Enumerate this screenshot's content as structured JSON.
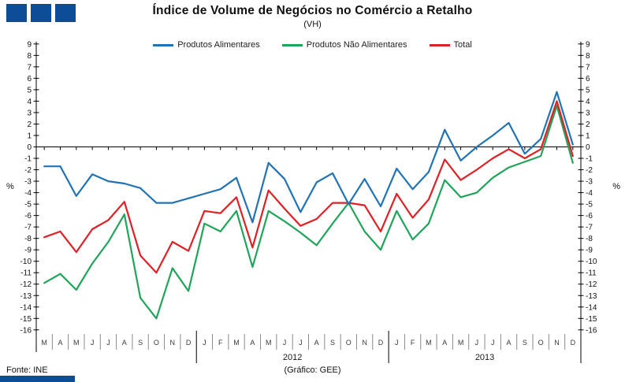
{
  "header": {
    "title": "Índice de Volume de Negócios no Comércio a Retalho",
    "subtitle": "(VH)"
  },
  "branding": {
    "square_color": "#0d4c97",
    "square_count": 3
  },
  "footer": {
    "source": "Fonte: INE",
    "credit": "(Gráfico: GEE)"
  },
  "chart_data": {
    "type": "line",
    "title": "Índice de Volume de Negócios no Comércio a Retalho",
    "subtitle": "(VH)",
    "ylabel_left": "%",
    "ylabel_right": "%",
    "ylim": [
      -16,
      9
    ],
    "ytick_step": 1,
    "grid": false,
    "legend_position": "top-center",
    "x_categories": [
      "M",
      "A",
      "M",
      "J",
      "J",
      "A",
      "S",
      "O",
      "N",
      "D",
      "J",
      "F",
      "M",
      "A",
      "M",
      "J",
      "J",
      "A",
      "S",
      "O",
      "N",
      "D",
      "J",
      "F",
      "M",
      "A",
      "M",
      "J",
      "J",
      "A",
      "S",
      "O",
      "N",
      "D"
    ],
    "x_groups": [
      {
        "label": "",
        "count": 10
      },
      {
        "label": "2012",
        "count": 12
      },
      {
        "label": "2013",
        "count": 12
      }
    ],
    "series": [
      {
        "name": "Produtos Alimentares",
        "color": "#2173b4",
        "values": [
          -1.7,
          -1.7,
          -4.3,
          -2.4,
          -3.0,
          -3.2,
          -3.6,
          -4.9,
          -4.9,
          -4.5,
          -4.1,
          -3.7,
          -2.7,
          -6.6,
          -1.4,
          -2.8,
          -5.7,
          -3.1,
          -2.3,
          -5.0,
          -2.8,
          -5.2,
          -1.9,
          -3.7,
          -2.2,
          1.5,
          -1.2,
          0.0,
          1.0,
          2.1,
          -0.6,
          0.7,
          4.8,
          0.2
        ]
      },
      {
        "name": "Produtos Não Alimentares",
        "color": "#1fa45a",
        "values": [
          -11.9,
          -11.1,
          -12.5,
          -10.2,
          -8.3,
          -5.9,
          -13.2,
          -15.0,
          -10.6,
          -12.6,
          -6.7,
          -7.4,
          -5.6,
          -10.5,
          -5.6,
          -6.5,
          -7.5,
          -8.6,
          -6.7,
          -4.9,
          -7.4,
          -9.0,
          -5.6,
          -8.1,
          -6.7,
          -2.9,
          -4.4,
          -4.0,
          -2.7,
          -1.8,
          -1.3,
          -0.8,
          3.6,
          -1.4
        ]
      },
      {
        "name": "Total",
        "color": "#df2025",
        "values": [
          -7.9,
          -7.4,
          -9.2,
          -7.2,
          -6.4,
          -4.8,
          -9.5,
          -11.0,
          -8.3,
          -9.1,
          -5.6,
          -5.8,
          -4.4,
          -8.8,
          -3.8,
          -5.4,
          -6.9,
          -6.3,
          -4.9,
          -4.9,
          -5.1,
          -7.4,
          -4.1,
          -6.2,
          -4.6,
          -1.1,
          -2.9,
          -2.0,
          -1.0,
          -0.2,
          -1.0,
          -0.2,
          4.0,
          -0.8
        ]
      }
    ]
  }
}
